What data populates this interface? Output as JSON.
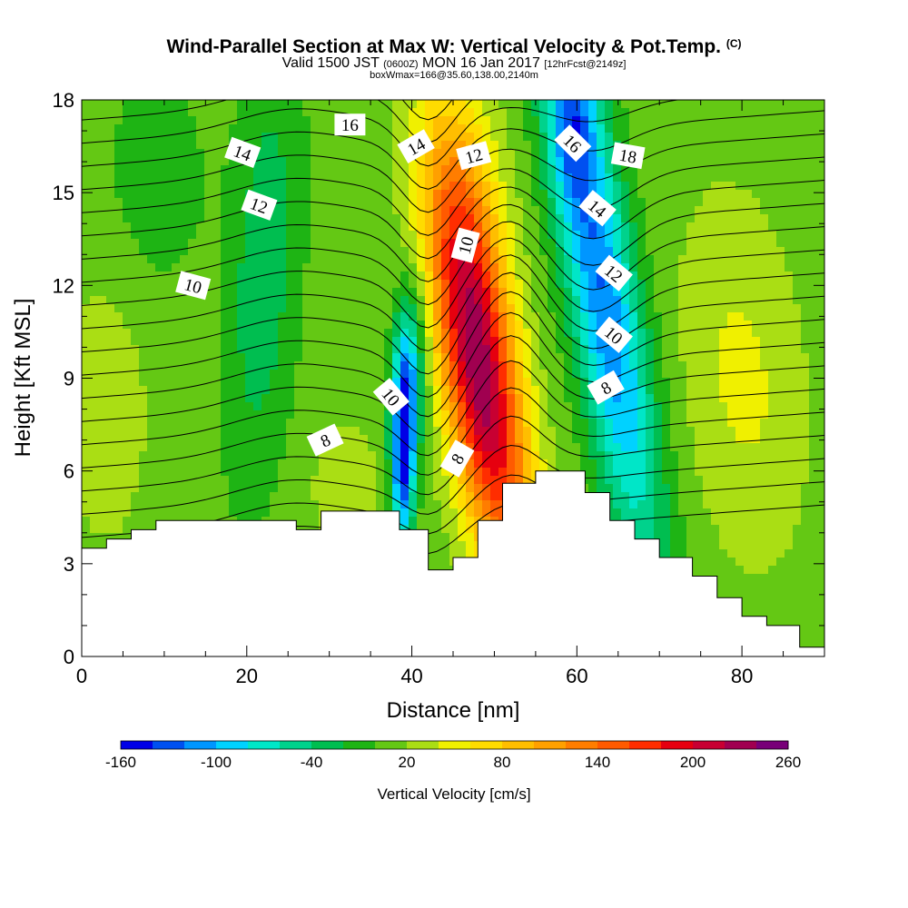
{
  "chart_data": {
    "type": "heatmap",
    "title": "Wind-Parallel Section at Max W: Vertical Velocity & Pot.Temp.",
    "title_mark": "(C)",
    "subtitle_valid": "Valid 1500 JST",
    "subtitle_utc": "(0600Z)",
    "subtitle_date": "MON 16 Jan 2017",
    "subtitle_fcst": "[12hrFcst@2149z]",
    "subtitle2": "boxWmax=166@35.60,138.00,2140m",
    "xlabel": "Distance [nm]",
    "ylabel": "Height [Kft MSL]",
    "xlim": [
      0,
      90
    ],
    "ylim": [
      0,
      18
    ],
    "xticks": [
      0,
      20,
      40,
      60,
      80
    ],
    "xtick_labels": [
      "0",
      "20",
      "40",
      "60",
      "80"
    ],
    "yticks": [
      0,
      3,
      6,
      9,
      12,
      15,
      18
    ],
    "ytick_labels": [
      "0",
      "3",
      "6",
      "9",
      "12",
      "15",
      "18"
    ],
    "colorbar": {
      "title": "Vertical Velocity [cm/s]",
      "levels": [
        -160,
        -140,
        -120,
        -100,
        -80,
        -60,
        -40,
        -20,
        0,
        20,
        40,
        60,
        80,
        100,
        120,
        140,
        160,
        180,
        200,
        220,
        240,
        260
      ],
      "colors": [
        "#0000e6",
        "#0050f0",
        "#0096ff",
        "#00d2ff",
        "#00e6c8",
        "#00d28c",
        "#00be50",
        "#1eb414",
        "#64c814",
        "#aade14",
        "#f0f000",
        "#ffdc00",
        "#ffbe00",
        "#ffa000",
        "#ff7d00",
        "#ff5a00",
        "#ff2d00",
        "#e6000f",
        "#c80032",
        "#a00050",
        "#780078"
      ],
      "tick_values": [
        -160,
        -100,
        -40,
        20,
        80,
        140,
        200,
        260
      ],
      "tick_labels": [
        "-160",
        "-100",
        "-40",
        "20",
        "80",
        "140",
        "200",
        "260"
      ]
    },
    "contour_labels": [
      "16",
      "14",
      "12",
      "10",
      "8",
      "14",
      "12",
      "10",
      "16",
      "18",
      "14",
      "12",
      "10",
      "8",
      "10",
      "8"
    ],
    "terrain_kft": [
      [
        0,
        3.5
      ],
      [
        3,
        3.5
      ],
      [
        3,
        3.8
      ],
      [
        6,
        3.8
      ],
      [
        6,
        4.1
      ],
      [
        9,
        4.1
      ],
      [
        9,
        4.4
      ],
      [
        26,
        4.4
      ],
      [
        26,
        4.1
      ],
      [
        29,
        4.1
      ],
      [
        29,
        4.7
      ],
      [
        38.5,
        4.7
      ],
      [
        38.5,
        4.1
      ],
      [
        42,
        4.1
      ],
      [
        42,
        2.8
      ],
      [
        45,
        2.8
      ],
      [
        45,
        3.2
      ],
      [
        48,
        3.2
      ],
      [
        48,
        4.4
      ],
      [
        51,
        4.4
      ],
      [
        51,
        5.6
      ],
      [
        55,
        5.6
      ],
      [
        55,
        6.0
      ],
      [
        61,
        6.0
      ],
      [
        61,
        5.3
      ],
      [
        64,
        5.3
      ],
      [
        64,
        4.4
      ],
      [
        67,
        4.4
      ],
      [
        67,
        3.8
      ],
      [
        70,
        3.8
      ],
      [
        70,
        3.2
      ],
      [
        74,
        3.2
      ],
      [
        74,
        2.6
      ],
      [
        77,
        2.6
      ],
      [
        77,
        1.9
      ],
      [
        80,
        1.9
      ],
      [
        80,
        1.3
      ],
      [
        83,
        1.3
      ],
      [
        83,
        1.0
      ],
      [
        87,
        1.0
      ],
      [
        87,
        0.3
      ],
      [
        90,
        0.3
      ],
      [
        90,
        0
      ]
    ]
  }
}
